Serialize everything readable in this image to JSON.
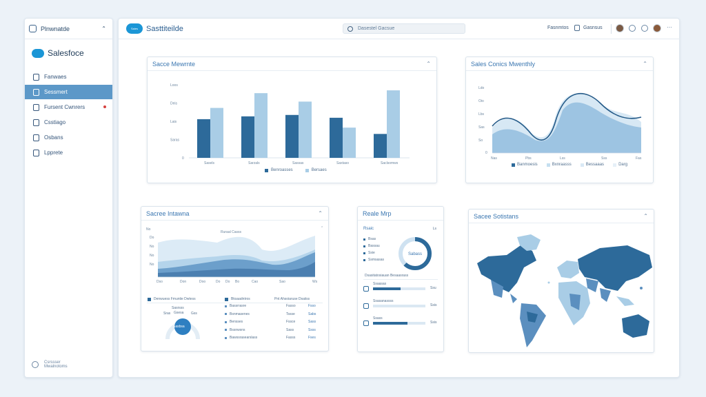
{
  "sidebar": {
    "header": "Plnwnatde",
    "brand": "Salesfoce",
    "items": [
      {
        "label": "Fanwaes",
        "active": false,
        "badge": false
      },
      {
        "label": "Sessmert",
        "active": true,
        "badge": false
      },
      {
        "label": "Fursent Cwnrers",
        "active": false,
        "badge": true
      },
      {
        "label": "Csstiago",
        "active": false,
        "badge": false
      },
      {
        "label": "Osbans",
        "active": false,
        "badge": false
      },
      {
        "label": "Lpprete",
        "active": false,
        "badge": false
      }
    ],
    "footer": [
      "Csrssser",
      "Mwalnotoms"
    ]
  },
  "topbar": {
    "logo_badge": "Sales",
    "title": "Sasttiteilde",
    "search_placeholder": "Dasestel Gacsue",
    "links": [
      "Fasnmtos",
      "Gasnsus"
    ]
  },
  "card1": {
    "title": "Sacce Mewrnte",
    "chart_data": {
      "type": "bar",
      "categories": [
        "Sasels",
        "Sarzals",
        "Sassas",
        "Saxtaso",
        "Saclsomws"
      ],
      "yticks": [
        "Loos",
        "Deis",
        "Lais",
        "Saras",
        "0"
      ],
      "series": [
        {
          "name": "Benroasses",
          "color": "#2d6a9a",
          "values": [
            55,
            59,
            61,
            57,
            34
          ]
        },
        {
          "name": "Bersaes",
          "color": "#a9cde6",
          "values": [
            71,
            92,
            80,
            43,
            96
          ]
        }
      ]
    }
  },
  "card2": {
    "title": "Sales Conics Mwenthly",
    "chart_data": {
      "type": "area",
      "yticks": [
        "Ldo",
        "Oio",
        "Lbs",
        "Sas",
        "So",
        "0"
      ],
      "xticks": [
        "Nas",
        "Pbs",
        "Lss",
        "Sss",
        "Fas"
      ],
      "series": [
        {
          "name": "Banmoesis",
          "color": "#2d6a9a"
        },
        {
          "name": "Bxnraasss",
          "color": "#c5dff0"
        },
        {
          "name": "Bessaaas",
          "color": "#d9e9f5"
        },
        {
          "name": "Darg",
          "color": "#e6f0f8"
        }
      ]
    }
  },
  "card3": {
    "title": "Sacree Intawna",
    "chart_label": "Ruraal Casss",
    "chart_data": {
      "type": "area",
      "yticks": [
        "No",
        "Do",
        "No",
        "No",
        "No"
      ],
      "xticks": [
        "Dso",
        "Don",
        "Doo",
        "Do",
        "Do",
        "Bo",
        "Cao",
        "Sao",
        "Ws"
      ]
    },
    "table": {
      "headers": [
        "Denwuess Fmuntie Dwtess",
        "Bksaadntros",
        "Pnt Ahsoiaruse Dsaiiss"
      ],
      "rows": [
        [
          "Bassrrasre",
          "Fasso",
          "Fsso"
        ],
        [
          "Bsnmasenes",
          "Tssse",
          "Sabs"
        ],
        [
          "Bensses",
          "Fssce",
          "Sass"
        ],
        [
          "Bssnwsns",
          "Sass",
          "Ssss"
        ],
        [
          "Bawssrasearslass",
          "Fasss",
          "Fses"
        ]
      ],
      "gauge_label": "Sasrsss",
      "gauge_sub": "Gsesa",
      "gauge_left": "Sras",
      "gauge_right": "Gss",
      "gauge_value": "Sasbsa"
    }
  },
  "card4": {
    "title": "Reale Mrp",
    "subtitle": "Rsaic",
    "subtitle_right": "Ls",
    "legend": [
      "Bsas",
      "Bassau",
      "Ssie",
      "Ssmsasas"
    ],
    "donut_label": "Sabass",
    "donut_fraction": 0.62,
    "section": "Dsasitatosiauan Besaasrass",
    "bars": [
      {
        "label": "Ssaasas",
        "value": "Ssu",
        "fill": 0.52
      },
      {
        "label": "Ssasanassss",
        "value": "Ssis",
        "fill": 0.0
      },
      {
        "label": "Ssass",
        "value": "Ssis",
        "fill": 0.66
      }
    ]
  },
  "card5": {
    "title": "Sacee Sotistans"
  },
  "colors": {
    "accent": "#3a76b0",
    "dark": "#2d6a9a",
    "light": "#a9cde6",
    "bg": "#ecf2f8"
  }
}
